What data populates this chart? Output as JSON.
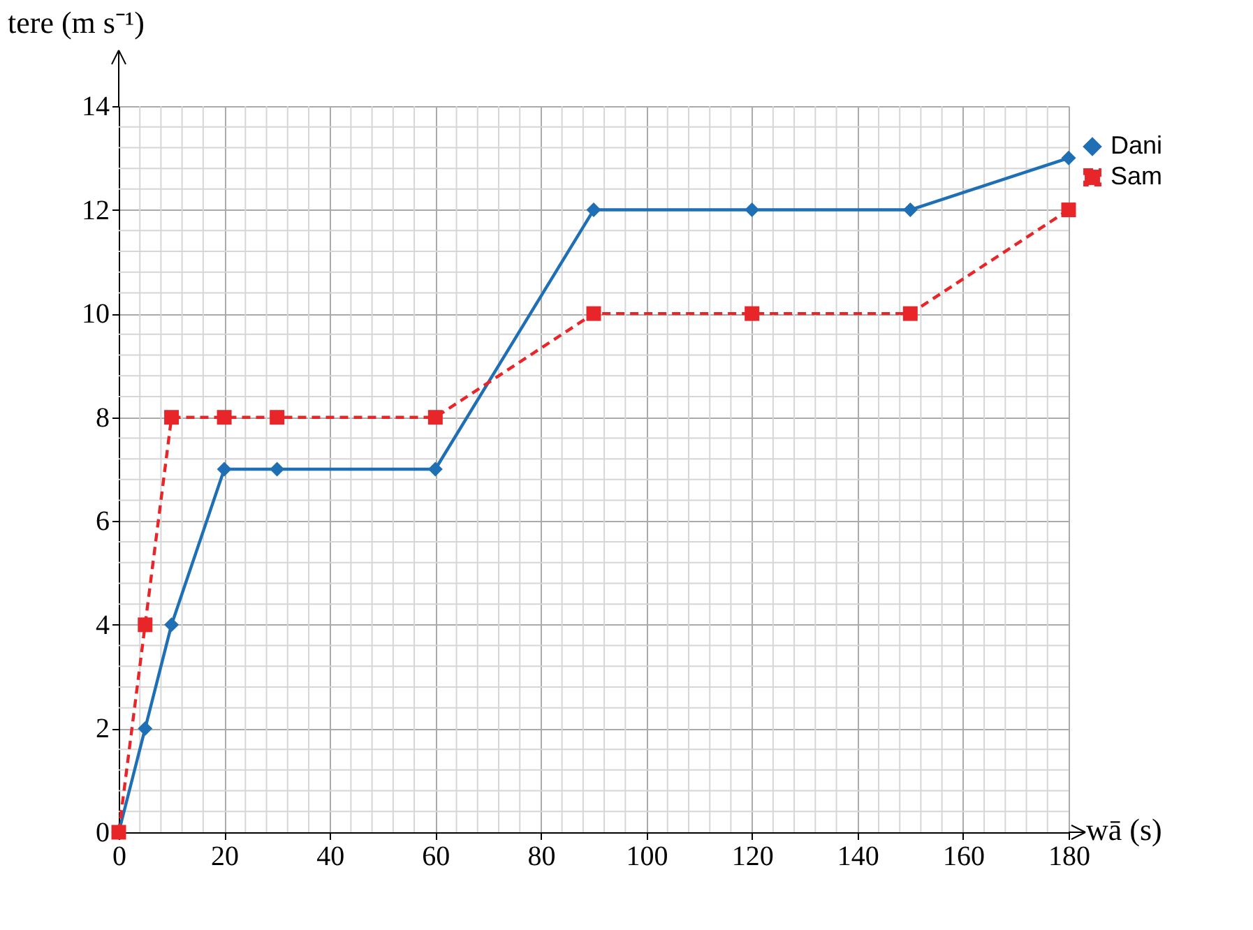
{
  "chart_data": {
    "type": "line",
    "xlabel": "wā (s)",
    "ylabel": "tere (m s⁻¹)",
    "xlim": [
      0,
      180
    ],
    "ylim": [
      0,
      14
    ],
    "xticks": [
      0,
      20,
      40,
      60,
      80,
      100,
      120,
      140,
      160,
      180
    ],
    "yticks": [
      0,
      2,
      4,
      6,
      8,
      10,
      12,
      14
    ],
    "grid": true,
    "legend": "top right",
    "series": [
      {
        "name": "Dani",
        "color": "#1f6fb5",
        "marker": "diamond",
        "line_style": "solid",
        "x": [
          0,
          5,
          10,
          20,
          30,
          60,
          90,
          120,
          150,
          180
        ],
        "values": [
          0,
          2,
          4,
          7,
          7,
          7,
          12,
          12,
          12,
          13
        ]
      },
      {
        "name": "Sam",
        "color": "#e8262a",
        "marker": "square",
        "line_style": "dashed",
        "x": [
          0,
          5,
          10,
          20,
          30,
          60,
          90,
          120,
          150,
          180
        ],
        "values": [
          0,
          4,
          8,
          8,
          8,
          8,
          10,
          10,
          10,
          12
        ]
      }
    ]
  }
}
